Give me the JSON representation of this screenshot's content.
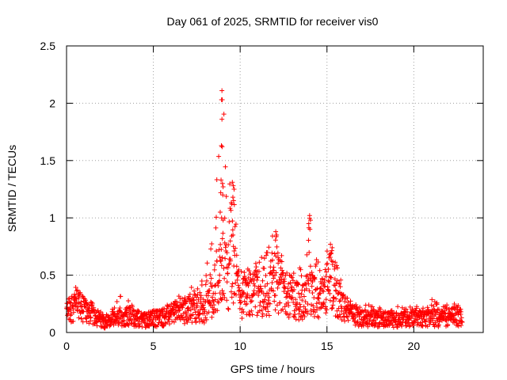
{
  "chart_data": {
    "type": "scatter",
    "title": "Day 061 of 2025, SRMTID for receiver vis0",
    "xlabel": "GPS time / hours",
    "ylabel": "SRMTID / TECUs",
    "xlim": [
      0,
      24
    ],
    "ylim": [
      0,
      2.5
    ],
    "xticks": [
      0,
      5,
      10,
      15,
      20
    ],
    "xtick_labels": [
      "0",
      "5",
      "10",
      "15",
      "20"
    ],
    "yticks": [
      0,
      0.5,
      1,
      1.5,
      2,
      2.5
    ],
    "ytick_labels": [
      "0",
      "0.5",
      "1",
      "1.5",
      "2",
      "2.5"
    ],
    "grid": true,
    "marker": "+",
    "color": "#ff0000",
    "x_range": [
      0.0,
      22.8
    ],
    "envelope": {
      "x": [
        0,
        0.5,
        1,
        1.5,
        2,
        2.5,
        3,
        3.5,
        4,
        4.5,
        5,
        5.5,
        6,
        6.5,
        7,
        7.5,
        8,
        8.5,
        9,
        9.3,
        9.6,
        9.8,
        10,
        10.5,
        11,
        11.5,
        12,
        12.3,
        12.6,
        13,
        13.5,
        14,
        14.3,
        14.6,
        15,
        15.3,
        15.6,
        16,
        16.5,
        17,
        17.5,
        18,
        18.5,
        19,
        19.5,
        20,
        20.5,
        21,
        21.5,
        22,
        22.5,
        22.8
      ],
      "center": [
        0.18,
        0.25,
        0.2,
        0.16,
        0.1,
        0.09,
        0.12,
        0.15,
        0.12,
        0.11,
        0.12,
        0.13,
        0.15,
        0.18,
        0.2,
        0.22,
        0.2,
        0.35,
        0.6,
        0.5,
        0.55,
        0.4,
        0.3,
        0.3,
        0.35,
        0.3,
        0.45,
        0.4,
        0.35,
        0.3,
        0.25,
        0.35,
        0.3,
        0.25,
        0.4,
        0.45,
        0.3,
        0.2,
        0.15,
        0.13,
        0.12,
        0.12,
        0.11,
        0.11,
        0.12,
        0.12,
        0.12,
        0.13,
        0.12,
        0.13,
        0.14,
        0.13
      ],
      "peak": [
        0.28,
        0.4,
        0.3,
        0.22,
        0.18,
        0.15,
        0.35,
        0.3,
        0.2,
        0.2,
        0.2,
        0.22,
        0.28,
        0.32,
        0.4,
        0.4,
        0.55,
        1.0,
        2.1,
        1.3,
        1.3,
        0.9,
        0.6,
        0.55,
        0.68,
        0.7,
        0.9,
        0.7,
        0.6,
        0.55,
        0.6,
        1.02,
        0.75,
        0.6,
        0.72,
        0.77,
        0.6,
        0.35,
        0.25,
        0.25,
        0.25,
        0.22,
        0.2,
        0.22,
        0.26,
        0.22,
        0.25,
        0.35,
        0.22,
        0.25,
        0.28,
        0.25
      ]
    }
  }
}
